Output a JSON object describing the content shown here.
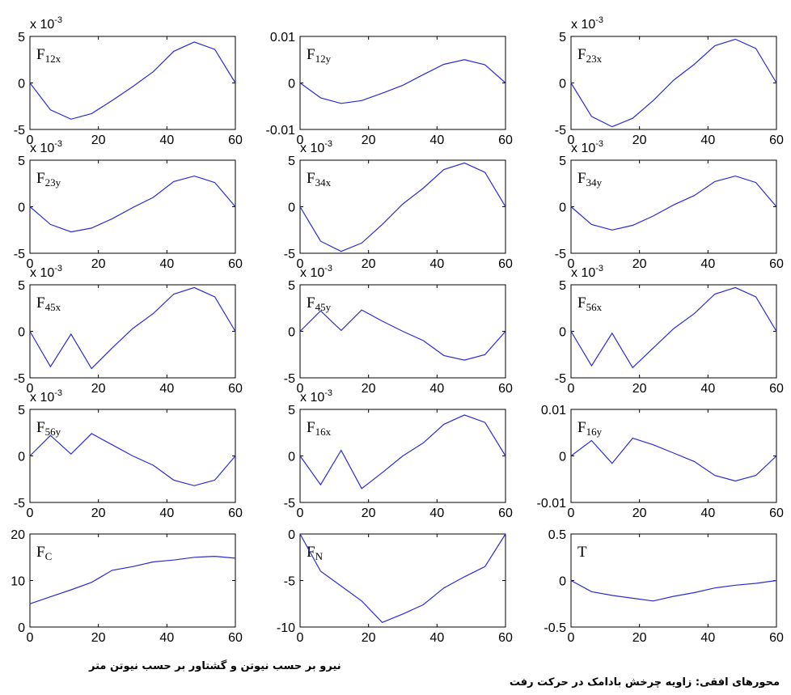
{
  "chart_data": [
    {
      "type": "line",
      "panel_label": "F",
      "panel_subscript": "12x",
      "exponent_label": "x 10",
      "exponent_sup": "-3",
      "x": [
        0,
        6,
        12,
        18,
        24,
        30,
        36,
        42,
        48,
        54,
        60
      ],
      "y": [
        0,
        -2.9,
        -3.9,
        -3.3,
        -1.9,
        -0.4,
        1.2,
        3.4,
        4.4,
        3.6,
        0
      ],
      "xlim": [
        0,
        60
      ],
      "ylim": [
        -5,
        5
      ],
      "xticks": [
        "0",
        "20",
        "40",
        "60"
      ],
      "yticks": [
        "5",
        "0",
        "-5"
      ]
    },
    {
      "type": "line",
      "panel_label": "F",
      "panel_subscript": "12y",
      "exponent_label": "",
      "exponent_sup": "",
      "x": [
        0,
        6,
        12,
        18,
        24,
        30,
        36,
        42,
        48,
        54,
        60
      ],
      "y": [
        0,
        -0.0032,
        -0.0044,
        -0.0038,
        -0.0022,
        -0.0005,
        0.0018,
        0.004,
        0.005,
        0.0039,
        0
      ],
      "xlim": [
        0,
        60
      ],
      "ylim": [
        -0.01,
        0.01
      ],
      "xticks": [
        "0",
        "20",
        "40",
        "60"
      ],
      "yticks": [
        "0.01",
        "0",
        "-0.01"
      ]
    },
    {
      "type": "line",
      "panel_label": "F",
      "panel_subscript": "23x",
      "exponent_label": "x 10",
      "exponent_sup": "-3",
      "x": [
        0,
        6,
        12,
        18,
        24,
        30,
        36,
        42,
        48,
        54,
        60
      ],
      "y": [
        0,
        -3.6,
        -4.7,
        -3.8,
        -1.9,
        0.3,
        2.0,
        4.0,
        4.7,
        3.7,
        0
      ],
      "xlim": [
        0,
        60
      ],
      "ylim": [
        -5,
        5
      ],
      "xticks": [
        "0",
        "20",
        "40",
        "60"
      ],
      "yticks": [
        "5",
        "0",
        "-5"
      ]
    },
    {
      "type": "line",
      "panel_label": "F",
      "panel_subscript": "23y",
      "exponent_label": "x 10",
      "exponent_sup": "-3",
      "x": [
        0,
        6,
        12,
        18,
        24,
        30,
        36,
        42,
        48,
        54,
        60
      ],
      "y": [
        0,
        -1.9,
        -2.7,
        -2.3,
        -1.3,
        -0.1,
        1.0,
        2.7,
        3.3,
        2.6,
        0
      ],
      "xlim": [
        0,
        60
      ],
      "ylim": [
        -5,
        5
      ],
      "xticks": [
        "0",
        "20",
        "40",
        "60"
      ],
      "yticks": [
        "5",
        "0",
        "-5"
      ]
    },
    {
      "type": "line",
      "panel_label": "F",
      "panel_subscript": "34x",
      "exponent_label": "x 10",
      "exponent_sup": "-3",
      "x": [
        0,
        6,
        12,
        18,
        24,
        30,
        36,
        42,
        48,
        54,
        60
      ],
      "y": [
        0,
        -3.7,
        -4.8,
        -3.9,
        -1.9,
        0.3,
        2.0,
        4.0,
        4.7,
        3.7,
        0
      ],
      "xlim": [
        0,
        60
      ],
      "ylim": [
        -5,
        5
      ],
      "xticks": [
        "0",
        "20",
        "40",
        "60"
      ],
      "yticks": [
        "5",
        "0",
        "-5"
      ]
    },
    {
      "type": "line",
      "panel_label": "F",
      "panel_subscript": "34y",
      "exponent_label": "x 10",
      "exponent_sup": "-3",
      "x": [
        0,
        6,
        12,
        18,
        24,
        30,
        36,
        42,
        48,
        54,
        60
      ],
      "y": [
        0,
        -1.9,
        -2.5,
        -2.0,
        -1.0,
        0.2,
        1.2,
        2.7,
        3.3,
        2.6,
        0
      ],
      "xlim": [
        0,
        60
      ],
      "ylim": [
        -5,
        5
      ],
      "xticks": [
        "0",
        "20",
        "40",
        "60"
      ],
      "yticks": [
        "5",
        "0",
        "-5"
      ]
    },
    {
      "type": "line",
      "panel_label": "F",
      "panel_subscript": "45x",
      "exponent_label": "x 10",
      "exponent_sup": "-3",
      "x": [
        0,
        6,
        12,
        18,
        24,
        30,
        36,
        42,
        48,
        54,
        60
      ],
      "y": [
        0,
        -3.8,
        -0.3,
        -4.0,
        -1.8,
        0.3,
        1.9,
        4.0,
        4.7,
        3.7,
        0
      ],
      "xlim": [
        0,
        60
      ],
      "ylim": [
        -5,
        5
      ],
      "xticks": [
        "0",
        "20",
        "40",
        "60"
      ],
      "yticks": [
        "5",
        "0",
        "-5"
      ]
    },
    {
      "type": "line",
      "panel_label": "F",
      "panel_subscript": "45y",
      "exponent_label": "x 10",
      "exponent_sup": "-3",
      "x": [
        0,
        6,
        12,
        18,
        24,
        30,
        36,
        42,
        48,
        54,
        60
      ],
      "y": [
        0,
        2.2,
        0.1,
        2.3,
        1.1,
        0.0,
        -1.0,
        -2.6,
        -3.1,
        -2.5,
        0
      ],
      "xlim": [
        0,
        60
      ],
      "ylim": [
        -5,
        5
      ],
      "xticks": [
        "0",
        "20",
        "40",
        "60"
      ],
      "yticks": [
        "5",
        "0",
        "-5"
      ]
    },
    {
      "type": "line",
      "panel_label": "F",
      "panel_subscript": "56x",
      "exponent_label": "x 10",
      "exponent_sup": "-3",
      "x": [
        0,
        6,
        12,
        18,
        24,
        30,
        36,
        42,
        48,
        54,
        60
      ],
      "y": [
        0,
        -3.7,
        -0.2,
        -3.9,
        -1.8,
        0.3,
        1.9,
        4.0,
        4.7,
        3.7,
        0
      ],
      "xlim": [
        0,
        60
      ],
      "ylim": [
        -5,
        5
      ],
      "xticks": [
        "0",
        "20",
        "40",
        "60"
      ],
      "yticks": [
        "5",
        "0",
        "-5"
      ]
    },
    {
      "type": "line",
      "panel_label": "F",
      "panel_subscript": "56y",
      "exponent_label": "x 10",
      "exponent_sup": "-3",
      "x": [
        0,
        6,
        12,
        18,
        24,
        30,
        36,
        42,
        48,
        54,
        60
      ],
      "y": [
        0,
        2.2,
        0.2,
        2.4,
        1.2,
        0.0,
        -1.0,
        -2.6,
        -3.2,
        -2.6,
        0
      ],
      "xlim": [
        0,
        60
      ],
      "ylim": [
        -5,
        5
      ],
      "xticks": [
        "0",
        "20",
        "40",
        "60"
      ],
      "yticks": [
        "5",
        "0",
        "-5"
      ]
    },
    {
      "type": "line",
      "panel_label": "F",
      "panel_subscript": "16x",
      "exponent_label": "x 10",
      "exponent_sup": "-3",
      "x": [
        0,
        6,
        12,
        18,
        24,
        30,
        36,
        42,
        48,
        54,
        60
      ],
      "y": [
        0,
        -3.1,
        0.6,
        -3.5,
        -1.8,
        0.0,
        1.4,
        3.4,
        4.4,
        3.6,
        0
      ],
      "xlim": [
        0,
        60
      ],
      "ylim": [
        -5,
        5
      ],
      "xticks": [
        "0",
        "20",
        "40",
        "60"
      ],
      "yticks": [
        "5",
        "0",
        "-5"
      ]
    },
    {
      "type": "line",
      "panel_label": "F",
      "panel_subscript": "16y",
      "exponent_label": "",
      "exponent_sup": "",
      "x": [
        0,
        6,
        12,
        18,
        24,
        30,
        36,
        42,
        48,
        54,
        60
      ],
      "y": [
        0,
        0.0033,
        -0.0016,
        0.0038,
        0.0024,
        0.0006,
        -0.0012,
        -0.0042,
        -0.0054,
        -0.0042,
        0
      ],
      "xlim": [
        0,
        60
      ],
      "ylim": [
        -0.01,
        0.01
      ],
      "xticks": [
        "0",
        "20",
        "40",
        "60"
      ],
      "yticks": [
        "0.01",
        "0",
        "-0.01"
      ]
    },
    {
      "type": "line",
      "panel_label": "F",
      "panel_subscript": "C",
      "exponent_label": "",
      "exponent_sup": "",
      "x": [
        0,
        6,
        12,
        18,
        24,
        30,
        36,
        42,
        48,
        54,
        60
      ],
      "y": [
        5,
        6.5,
        8,
        9.6,
        12.2,
        13,
        14,
        14.4,
        15,
        15.2,
        14.8
      ],
      "xlim": [
        0,
        60
      ],
      "ylim": [
        0,
        20
      ],
      "xticks": [
        "0",
        "20",
        "40",
        "60"
      ],
      "yticks": [
        "20",
        "10",
        "0"
      ]
    },
    {
      "type": "line",
      "panel_label": "F",
      "panel_subscript": "N",
      "exponent_label": "",
      "exponent_sup": "",
      "x": [
        0,
        6,
        12,
        18,
        24,
        30,
        36,
        42,
        48,
        54,
        60
      ],
      "y": [
        0,
        -4,
        -5.6,
        -7.2,
        -9.5,
        -8.6,
        -7.6,
        -5.8,
        -4.6,
        -3.5,
        0
      ],
      "xlim": [
        0,
        60
      ],
      "ylim": [
        -10,
        0
      ],
      "xticks": [
        "0",
        "20",
        "40",
        "60"
      ],
      "yticks": [
        "0",
        "-5",
        "-10"
      ]
    },
    {
      "type": "line",
      "panel_label": "T",
      "panel_subscript": "",
      "exponent_label": "",
      "exponent_sup": "",
      "x": [
        0,
        6,
        12,
        18,
        24,
        30,
        36,
        42,
        48,
        54,
        60
      ],
      "y": [
        0,
        -0.12,
        -0.16,
        -0.19,
        -0.22,
        -0.17,
        -0.13,
        -0.08,
        -0.05,
        -0.03,
        0
      ],
      "xlim": [
        0,
        60
      ],
      "ylim": [
        -0.5,
        0.5
      ],
      "xticks": [
        "0",
        "20",
        "40",
        "60"
      ],
      "yticks": [
        "0.5",
        "0",
        "-0.5"
      ]
    }
  ],
  "footer": {
    "left_text": "نیرو بر حسب نیوتن و گشتاور بر حسب نیوتن متر",
    "right_text": "محورهای افقی: زاویه چرخش بادامک در حرکت رفت"
  },
  "colors": {
    "line": "#2b2bd6",
    "axis": "#000000",
    "text": "#000000"
  }
}
